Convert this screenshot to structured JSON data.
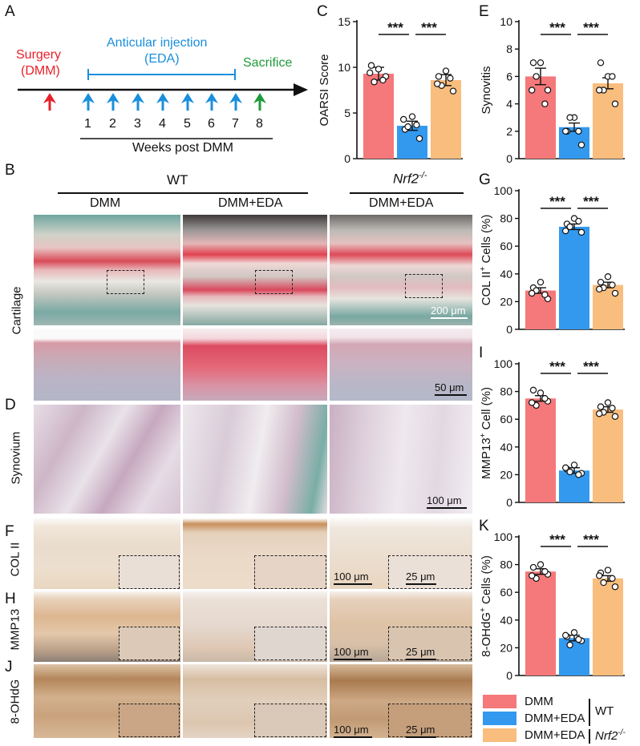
{
  "panel_letters": [
    "A",
    "B",
    "C",
    "D",
    "E",
    "F",
    "G",
    "H",
    "I",
    "J",
    "K"
  ],
  "timeline": {
    "surgery": "Surgery\n(DMM)",
    "surgery_l1": "Surgery",
    "surgery_l2": "(DMM)",
    "injection_l1": "Anticular injection",
    "injection_l2": "(EDA)",
    "sacrifice": "Sacrifice",
    "weeks": [
      "1",
      "2",
      "3",
      "4",
      "5",
      "6",
      "7",
      "8"
    ],
    "axis_label": "Weeks post DMM",
    "colors": {
      "surgery": "#e8202a",
      "injection": "#1a8fdc",
      "sacrifice": "#1f9a3a"
    }
  },
  "histology": {
    "group_wt": "WT",
    "group_ko": "Nrf2",
    "group_ko_sup": "-/-",
    "columns": [
      "DMM",
      "DMM+EDA",
      "DMM+EDA"
    ],
    "rows": [
      "Cartilage",
      "Synovium",
      "COL II",
      "MMP13",
      "8-OHdG"
    ],
    "scales": {
      "cart_top": "200 μm",
      "cart_zoom": "50 μm",
      "synovium": "100 μm",
      "ihc_main": "100 μm",
      "ihc_inset": "25 μm"
    }
  },
  "legend": {
    "items": [
      {
        "label": "DMM",
        "color": "#f5787a"
      },
      {
        "label": "DMM+EDA",
        "color": "#3399ef"
      },
      {
        "label": "DMM+EDA",
        "color": "#f9bd7d"
      }
    ],
    "wt": "WT",
    "ko": "Nrf2",
    "ko_sup": "-/-"
  },
  "significance": "***",
  "chart_data": [
    {
      "panel": "C",
      "type": "bar",
      "ylabel": "OARSI Score",
      "ylim": [
        0,
        15
      ],
      "yticks": [
        0,
        5,
        10,
        15
      ],
      "categories": [
        "DMM",
        "DMM+EDA",
        "DMM+EDA (Nrf2-/-)"
      ],
      "values": [
        9.3,
        3.6,
        8.6
      ],
      "errors": [
        0.7,
        0.5,
        0.6
      ],
      "points": [
        [
          9.8,
          10.2,
          9.0,
          8.4,
          8.6,
          9.4
        ],
        [
          4.6,
          3.2,
          2.2,
          3.5,
          3.7,
          4.3
        ],
        [
          9.6,
          9.0,
          7.4,
          8.0,
          8.8,
          8.2
        ]
      ]
    },
    {
      "panel": "E",
      "type": "bar",
      "ylabel": "Synovitis",
      "ylim": [
        0,
        10
      ],
      "yticks": [
        0,
        2,
        4,
        6,
        8,
        10
      ],
      "categories": [
        "DMM",
        "DMM+EDA",
        "DMM+EDA (Nrf2-/-)"
      ],
      "values": [
        6.0,
        2.3,
        5.5
      ],
      "errors": [
        0.6,
        0.3,
        0.4
      ],
      "points": [
        [
          7.0,
          7.0,
          5.0,
          6.0,
          4.0,
          5.0
        ],
        [
          3.0,
          2.0,
          1.0,
          3.0,
          2.0,
          2.0
        ],
        [
          6.0,
          7.0,
          4.0,
          5.0,
          6.0,
          5.0
        ]
      ]
    },
    {
      "panel": "G",
      "type": "bar",
      "ylabel": "COL II+ Cells (%)",
      "ylabel_main": "COL II",
      "ylabel_sup": "+",
      "ylabel_tail": " Cells (%)",
      "ylim": [
        0,
        100
      ],
      "yticks": [
        0,
        20,
        40,
        60,
        80,
        100
      ],
      "categories": [
        "DMM",
        "DMM+EDA",
        "DMM+EDA (Nrf2-/-)"
      ],
      "values": [
        28,
        74,
        32
      ],
      "errors": [
        2,
        2,
        2
      ],
      "points": [
        [
          34,
          30,
          22,
          28,
          25,
          26
        ],
        [
          80,
          76,
          70,
          74,
          78,
          71
        ],
        [
          38,
          34,
          26,
          30,
          32,
          29
        ]
      ]
    },
    {
      "panel": "I",
      "type": "bar",
      "ylabel": "MMP13+ Cell (%)",
      "ylabel_main": "MMP13",
      "ylabel_sup": "+",
      "ylabel_tail": " Cell (%)",
      "ylim": [
        0,
        100
      ],
      "yticks": [
        0,
        20,
        40,
        60,
        80,
        100
      ],
      "categories": [
        "DMM",
        "DMM+EDA",
        "DMM+EDA (Nrf2-/-)"
      ],
      "values": [
        75,
        23,
        67
      ],
      "errors": [
        2,
        2,
        2
      ],
      "points": [
        [
          79,
          81,
          73,
          70,
          75,
          72
        ],
        [
          27,
          24,
          21,
          22,
          20,
          25
        ],
        [
          72,
          69,
          62,
          65,
          68,
          64
        ]
      ]
    },
    {
      "panel": "K",
      "type": "bar",
      "ylabel": "8-OHdG+ Cells (%)",
      "ylabel_main": "8-OHdG",
      "ylabel_sup": "+",
      "ylabel_tail": " Cells (%)",
      "ylim": [
        0,
        100
      ],
      "yticks": [
        0,
        20,
        40,
        60,
        80,
        100
      ],
      "categories": [
        "DMM",
        "DMM+EDA",
        "DMM+EDA (Nrf2-/-)"
      ],
      "values": [
        75,
        27,
        70
      ],
      "errors": [
        2,
        2,
        2
      ],
      "points": [
        [
          80,
          78,
          73,
          70,
          75,
          72
        ],
        [
          31,
          28,
          25,
          22,
          26,
          29
        ],
        [
          76,
          74,
          64,
          67,
          70,
          72
        ]
      ]
    }
  ]
}
